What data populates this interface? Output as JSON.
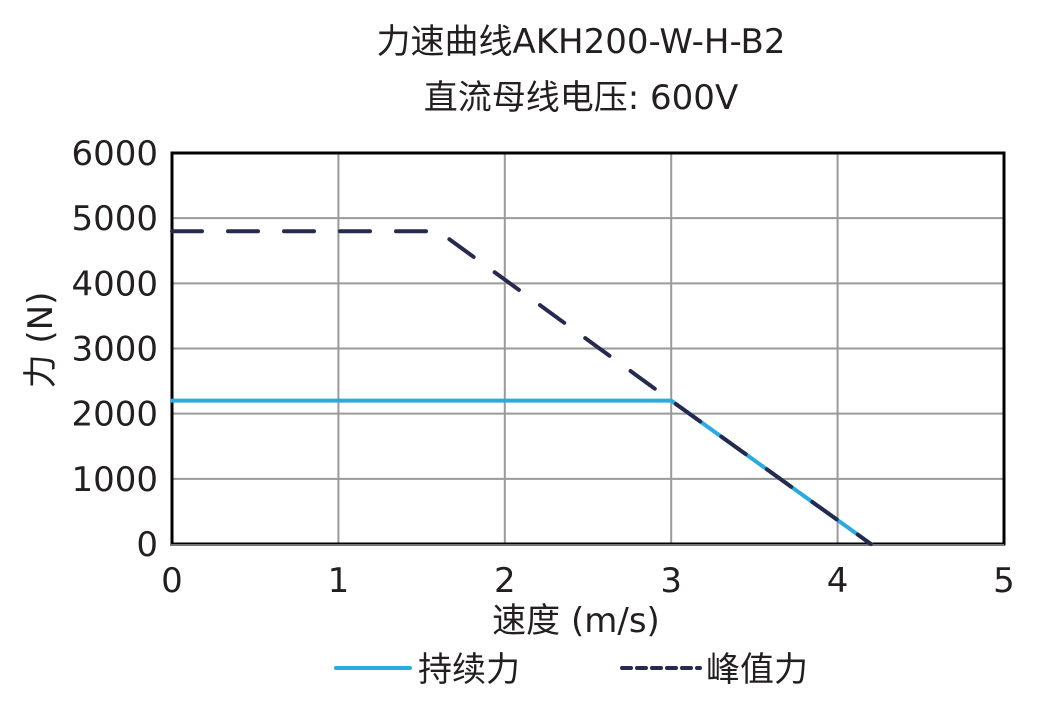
{
  "chart_data": {
    "type": "line",
    "title": "力速曲线AKH200-W-H-B2",
    "subtitle": "直流母线电压: 600V",
    "xlabel": "速度 (m/s)",
    "ylabel": "力 (N)",
    "xlim": [
      0,
      5
    ],
    "ylim": [
      0,
      6000
    ],
    "xticks": [
      "0",
      "1",
      "2",
      "3",
      "4",
      "5"
    ],
    "yticks": [
      "0",
      "1000",
      "2000",
      "3000",
      "4000",
      "5000",
      "6000"
    ],
    "grid": true,
    "legend_position": "bottom",
    "series": [
      {
        "name": "持续力",
        "style": "solid",
        "color": "#29abe2",
        "x": [
          0,
          3.0,
          4.2
        ],
        "y": [
          2200,
          2200,
          0
        ]
      },
      {
        "name": "峰值力",
        "style": "dashed",
        "color": "#262a4f",
        "x": [
          0,
          1.6,
          3.0,
          4.2
        ],
        "y": [
          4800,
          4800,
          2200,
          0
        ]
      }
    ]
  },
  "legend": {
    "continuous": "持续力",
    "peak": "峰值力"
  }
}
